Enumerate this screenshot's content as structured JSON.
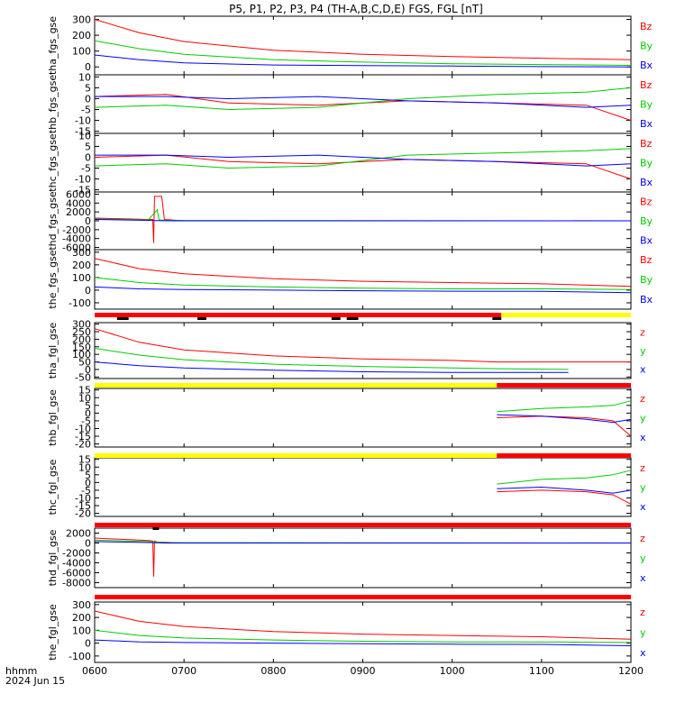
{
  "title": "P5, P1, P2, P3, P4 (TH-A,B,C,D,E) FGS, FGL [nT]",
  "time_axis": {
    "ticks": [
      "0600",
      "0700",
      "0800",
      "0900",
      "1000",
      "1100",
      "1200"
    ],
    "unit_label": "hhmm",
    "date_label": "2024 Jun 15",
    "range_hours": [
      6,
      12
    ]
  },
  "colors": {
    "x": "#0000ff",
    "y": "#00cc00",
    "z": "#ff0000",
    "bar_red": "#ff0000",
    "bar_yellow": "#ffff00",
    "bar_black": "#000000"
  },
  "chart_data": [
    {
      "type": "line",
      "ylabel": "tha_fgs_gse",
      "ylim": [
        -50,
        320
      ],
      "yticks": [
        "300",
        "200",
        "100",
        "0"
      ],
      "legend": [
        "Bz",
        "By",
        "Bx"
      ],
      "series": [
        {
          "name": "Bz",
          "x": [
            6.0,
            6.5,
            7.0,
            8.0,
            9.0,
            10.0,
            11.0,
            12.0
          ],
          "y": [
            300,
            215,
            160,
            105,
            80,
            65,
            55,
            45
          ]
        },
        {
          "name": "By",
          "x": [
            6.0,
            6.5,
            7.0,
            8.0,
            9.0,
            10.0,
            11.0,
            12.0
          ],
          "y": [
            165,
            115,
            80,
            45,
            30,
            20,
            15,
            10
          ]
        },
        {
          "name": "Bx",
          "x": [
            6.0,
            6.5,
            7.0,
            8.0,
            9.0,
            10.0,
            11.0,
            12.0
          ],
          "y": [
            75,
            45,
            25,
            12,
            8,
            5,
            2,
            0
          ]
        }
      ]
    },
    {
      "type": "line",
      "ylabel": "thb_fgs_gse",
      "ylim": [
        -16,
        11
      ],
      "yticks": [
        "10",
        "5",
        "0",
        "-5",
        "-10",
        "-15"
      ],
      "legend": [
        "Bz",
        "By",
        "Bx"
      ],
      "series": [
        {
          "name": "Bz",
          "x": [
            6.0,
            6.8,
            7.5,
            8.5,
            9.5,
            10.5,
            11.5,
            12.0
          ],
          "y": [
            1,
            2,
            -2,
            -3,
            -1,
            -2,
            -3,
            -10
          ]
        },
        {
          "name": "By",
          "x": [
            6.0,
            6.8,
            7.5,
            8.5,
            9.5,
            10.5,
            11.5,
            12.0
          ],
          "y": [
            -4,
            -3,
            -5,
            -4,
            0,
            2,
            3,
            5
          ]
        },
        {
          "name": "Bx",
          "x": [
            6.0,
            6.8,
            7.5,
            8.5,
            9.5,
            10.5,
            11.5,
            12.0
          ],
          "y": [
            1,
            1,
            0,
            1,
            -1,
            -2,
            -4,
            -3
          ]
        }
      ]
    },
    {
      "type": "line",
      "ylabel": "thc_fgs_gse",
      "ylim": [
        -16,
        11
      ],
      "yticks": [
        "10",
        "5",
        "0",
        "-5",
        "-10",
        "-15"
      ],
      "legend": [
        "Bz",
        "By",
        "Bx"
      ],
      "series": [
        {
          "name": "Bz",
          "x": [
            6.0,
            6.8,
            7.5,
            8.5,
            9.5,
            10.5,
            11.5,
            12.0
          ],
          "y": [
            0,
            1,
            -2,
            -3,
            -1,
            -2,
            -3,
            -10
          ]
        },
        {
          "name": "By",
          "x": [
            6.0,
            6.8,
            7.5,
            8.5,
            9.5,
            10.5,
            11.5,
            12.0
          ],
          "y": [
            -4,
            -3,
            -5,
            -4,
            1,
            2,
            3,
            4
          ]
        },
        {
          "name": "Bx",
          "x": [
            6.0,
            6.8,
            7.5,
            8.5,
            9.5,
            10.5,
            11.5,
            12.0
          ],
          "y": [
            1,
            1,
            0,
            1,
            -1,
            -2,
            -4,
            -3
          ]
        }
      ]
    },
    {
      "type": "line",
      "ylabel": "thd_fgs_gse",
      "ylim": [
        -6500,
        6500
      ],
      "yticks": [
        "6000",
        "4000",
        "2000",
        "0",
        "-2000",
        "-4000",
        "-6000"
      ],
      "legend": [
        "Bz",
        "By",
        "Bx"
      ],
      "series": [
        {
          "name": "Bz",
          "x": [
            6.0,
            6.6,
            6.65,
            6.66,
            6.67,
            6.68,
            6.75,
            6.78,
            7.0,
            12.0
          ],
          "y": [
            600,
            300,
            300,
            -5000,
            5500,
            5500,
            5500,
            300,
            0,
            0
          ]
        },
        {
          "name": "By",
          "x": [
            6.0,
            6.6,
            6.7,
            6.72,
            6.8,
            12.0
          ],
          "y": [
            400,
            200,
            2500,
            200,
            100,
            0
          ]
        },
        {
          "name": "Bx",
          "x": [
            6.0,
            6.6,
            6.8,
            12.0
          ],
          "y": [
            300,
            100,
            0,
            0
          ]
        }
      ]
    },
    {
      "type": "line",
      "ylabel": "the_fgs_gse",
      "ylim": [
        -150,
        320
      ],
      "yticks": [
        "300",
        "200",
        "100",
        "0",
        "-100"
      ],
      "legend": [
        "Bz",
        "By",
        "Bx"
      ],
      "series": [
        {
          "name": "Bz",
          "x": [
            6.0,
            6.5,
            7.0,
            8.0,
            9.0,
            10.0,
            11.0,
            12.0
          ],
          "y": [
            250,
            170,
            130,
            90,
            70,
            60,
            50,
            30
          ]
        },
        {
          "name": "By",
          "x": [
            6.0,
            6.5,
            7.0,
            8.0,
            9.0,
            10.0,
            11.0,
            12.0
          ],
          "y": [
            100,
            60,
            40,
            25,
            15,
            10,
            10,
            5
          ]
        },
        {
          "name": "Bx",
          "x": [
            6.0,
            6.5,
            7.0,
            8.0,
            9.0,
            10.0,
            11.0,
            12.0
          ],
          "y": [
            25,
            10,
            5,
            0,
            -5,
            -8,
            -10,
            -20
          ]
        }
      ]
    },
    {
      "type": "line",
      "ylabel": "tha_fgl_gse",
      "ylim": [
        -60,
        310
      ],
      "yticks": [
        "300",
        "250",
        "200",
        "150",
        "100",
        "50",
        "0",
        "-50"
      ],
      "legend": [
        "z",
        "y",
        "x"
      ],
      "series": [
        {
          "name": "z",
          "x": [
            6.0,
            6.5,
            7.0,
            8.0,
            9.0,
            10.0,
            10.5,
            12.0
          ],
          "y": [
            270,
            180,
            130,
            90,
            70,
            60,
            50,
            50
          ]
        },
        {
          "name": "y",
          "x": [
            6.0,
            6.5,
            7.0,
            8.0,
            9.0,
            10.0,
            10.5,
            11.3
          ],
          "y": [
            140,
            95,
            65,
            35,
            20,
            10,
            5,
            0
          ]
        },
        {
          "name": "x",
          "x": [
            6.0,
            6.5,
            7.0,
            8.0,
            9.0,
            10.0,
            10.5,
            11.3
          ],
          "y": [
            50,
            25,
            10,
            -5,
            -15,
            -20,
            -20,
            -20
          ]
        }
      ]
    },
    {
      "type": "line",
      "ylabel": "thb_fgl_gse",
      "ylim": [
        -22,
        16
      ],
      "yticks": [
        "15",
        "10",
        "5",
        "0",
        "-5",
        "-10",
        "-15",
        "-20"
      ],
      "legend": [
        "z",
        "y",
        "x"
      ],
      "series": [
        {
          "name": "z",
          "x": [
            10.5,
            11.0,
            11.5,
            11.8,
            12.0
          ],
          "y": [
            -3,
            -2,
            -3,
            -5,
            -15
          ]
        },
        {
          "name": "y",
          "x": [
            10.5,
            11.0,
            11.5,
            11.8,
            12.0
          ],
          "y": [
            1,
            3,
            4,
            5,
            8
          ]
        },
        {
          "name": "x",
          "x": [
            10.5,
            11.0,
            11.5,
            11.8,
            12.0
          ],
          "y": [
            -1,
            -2,
            -4,
            -6,
            -4
          ]
        }
      ]
    },
    {
      "type": "line",
      "ylabel": "thc_fgl_gse",
      "ylim": [
        -22,
        16
      ],
      "yticks": [
        "15",
        "10",
        "5",
        "0",
        "-5",
        "-10",
        "-15",
        "-20"
      ],
      "legend": [
        "z",
        "y",
        "x"
      ],
      "series": [
        {
          "name": "z",
          "x": [
            10.5,
            11.0,
            11.5,
            11.8,
            12.0
          ],
          "y": [
            -6,
            -5,
            -6,
            -8,
            -14
          ]
        },
        {
          "name": "y",
          "x": [
            10.5,
            11.0,
            11.5,
            11.8,
            12.0
          ],
          "y": [
            -1,
            2,
            3,
            5,
            8
          ]
        },
        {
          "name": "x",
          "x": [
            10.5,
            11.0,
            11.5,
            11.8,
            12.0
          ],
          "y": [
            -4,
            -3,
            -5,
            -7,
            -5
          ]
        }
      ]
    },
    {
      "type": "line",
      "ylabel": "thd_fgl_gse",
      "ylim": [
        -9000,
        3000
      ],
      "yticks": [
        "2000",
        "0",
        "-2000",
        "-4000",
        "-6000",
        "-8000"
      ],
      "legend": [
        "z",
        "y",
        "x"
      ],
      "series": [
        {
          "name": "z",
          "x": [
            6.0,
            6.6,
            6.65,
            6.66,
            6.67,
            6.7,
            7.0,
            12.0
          ],
          "y": [
            1000,
            500,
            400,
            -6800,
            400,
            200,
            0,
            0
          ]
        },
        {
          "name": "y",
          "x": [
            6.0,
            6.6,
            6.8,
            12.0
          ],
          "y": [
            600,
            300,
            100,
            0
          ]
        },
        {
          "name": "x",
          "x": [
            6.0,
            6.6,
            6.8,
            12.0
          ],
          "y": [
            300,
            100,
            0,
            0
          ]
        }
      ]
    },
    {
      "type": "line",
      "ylabel": "the_fgl_gse",
      "ylim": [
        -150,
        320
      ],
      "yticks": [
        "300",
        "200",
        "100",
        "0",
        "-100"
      ],
      "legend": [
        "z",
        "y",
        "x"
      ],
      "series": [
        {
          "name": "z",
          "x": [
            6.0,
            6.5,
            7.0,
            8.0,
            9.0,
            10.0,
            11.0,
            12.0
          ],
          "y": [
            250,
            170,
            130,
            90,
            70,
            60,
            50,
            30
          ]
        },
        {
          "name": "y",
          "x": [
            6.0,
            6.5,
            7.0,
            8.0,
            9.0,
            10.0,
            11.0,
            12.0
          ],
          "y": [
            100,
            60,
            40,
            25,
            15,
            10,
            10,
            5
          ]
        },
        {
          "name": "x",
          "x": [
            6.0,
            6.5,
            7.0,
            8.0,
            9.0,
            10.0,
            11.0,
            12.0
          ],
          "y": [
            25,
            10,
            5,
            0,
            -5,
            -8,
            -10,
            -20
          ]
        }
      ]
    }
  ],
  "mode_bars": [
    {
      "name": "bar-1",
      "segments": [
        {
          "from": 6.0,
          "to": 10.55,
          "color": "red"
        },
        {
          "from": 10.55,
          "to": 12.0,
          "color": "yellow"
        }
      ],
      "marks": [
        {
          "from": 6.25,
          "to": 6.38
        },
        {
          "from": 7.15,
          "to": 7.25
        },
        {
          "from": 8.65,
          "to": 8.75
        },
        {
          "from": 8.82,
          "to": 8.95
        },
        {
          "from": 10.45,
          "to": 10.55
        }
      ]
    },
    {
      "name": "bar-2",
      "segments": [
        {
          "from": 6.0,
          "to": 10.5,
          "color": "yellow"
        },
        {
          "from": 10.5,
          "to": 12.0,
          "color": "red"
        }
      ],
      "marks": []
    },
    {
      "name": "bar-3",
      "segments": [
        {
          "from": 6.0,
          "to": 10.5,
          "color": "yellow"
        },
        {
          "from": 10.5,
          "to": 12.0,
          "color": "red"
        }
      ],
      "marks": []
    },
    {
      "name": "bar-4",
      "segments": [
        {
          "from": 6.0,
          "to": 12.0,
          "color": "red"
        }
      ],
      "marks": [
        {
          "from": 6.65,
          "to": 6.72
        }
      ]
    },
    {
      "name": "bar-5",
      "segments": [
        {
          "from": 6.0,
          "to": 12.0,
          "color": "red"
        }
      ],
      "marks": []
    }
  ]
}
